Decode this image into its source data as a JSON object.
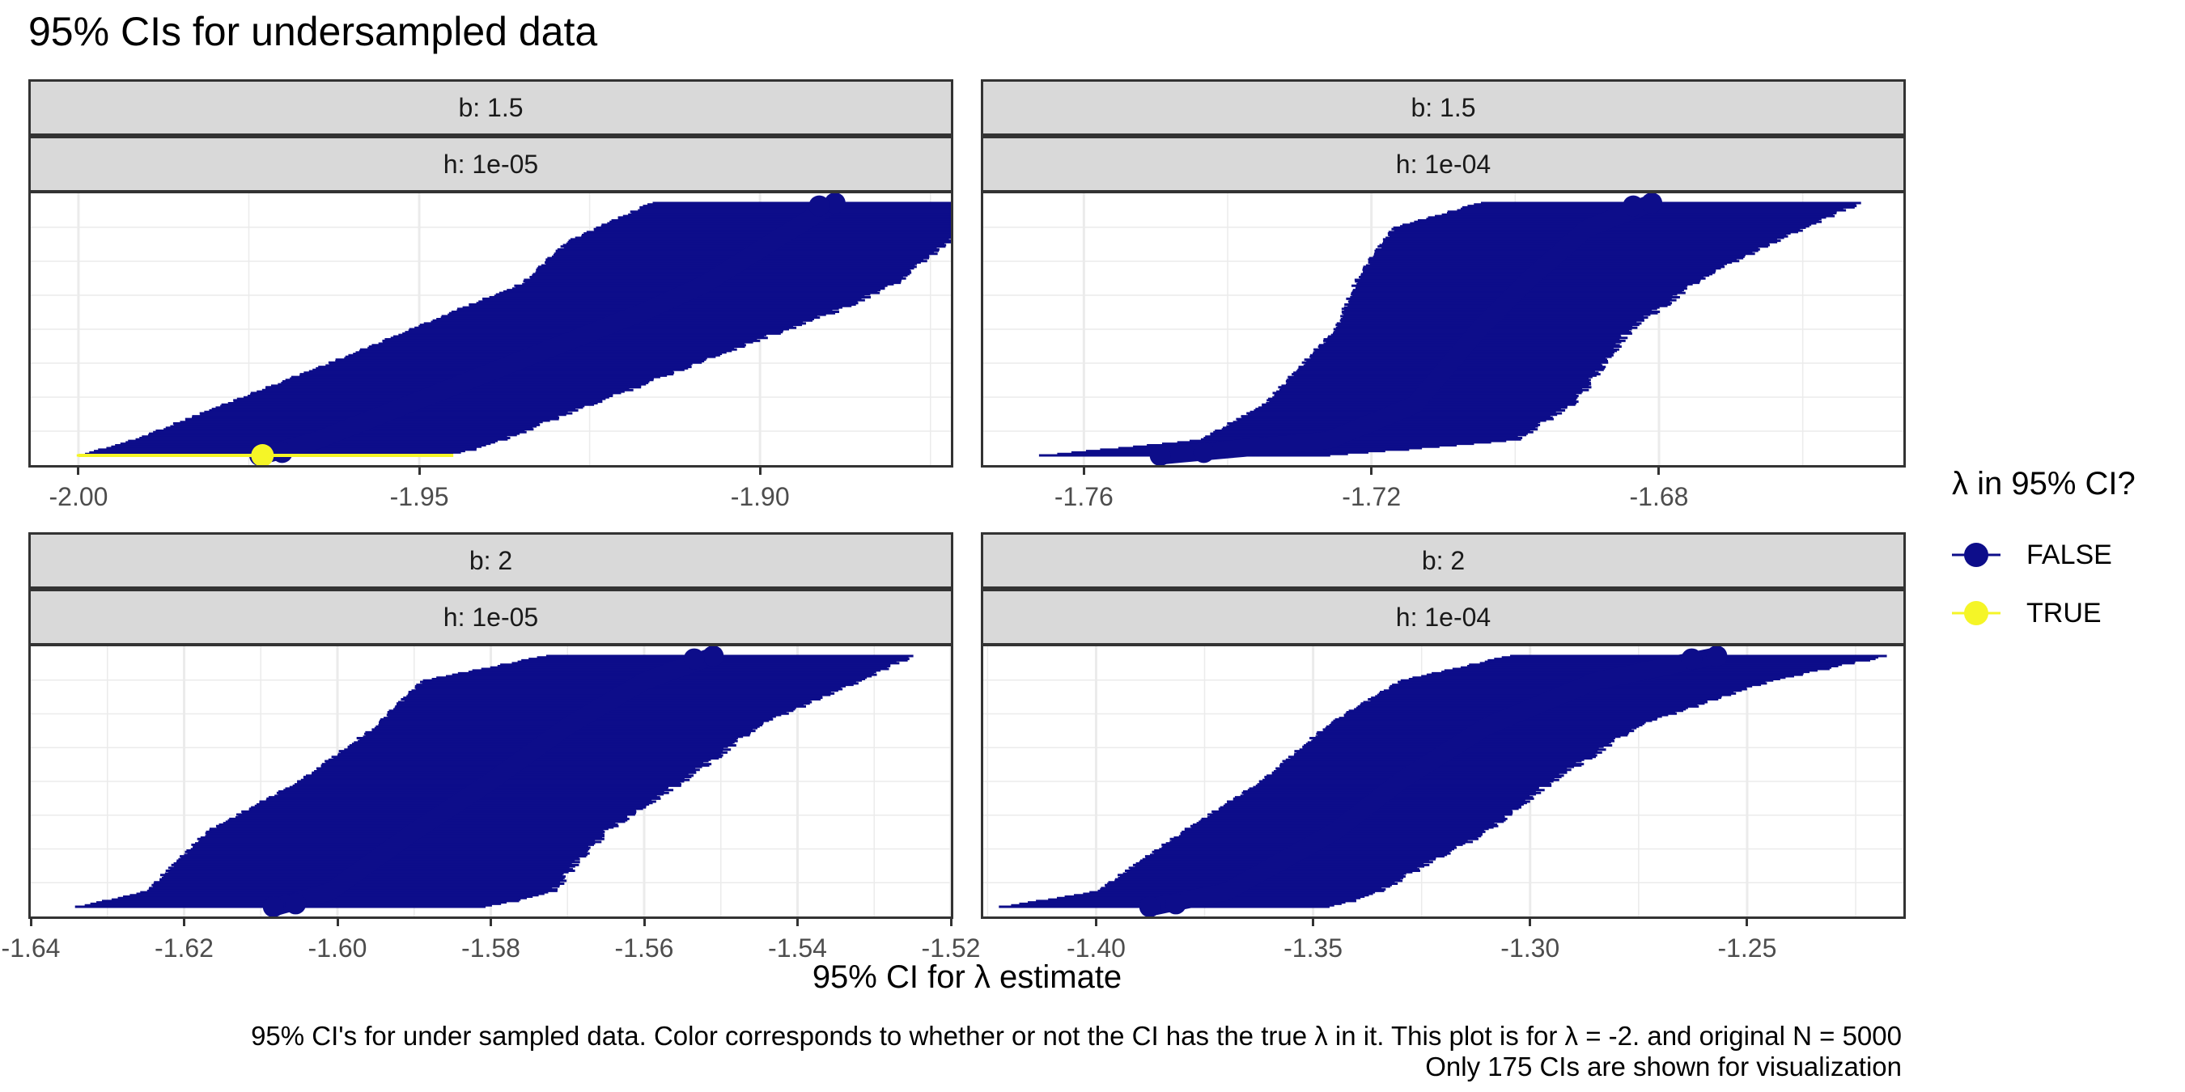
{
  "title": "95% CIs for undersampled data",
  "caption": {
    "line1": "95% CI's for under sampled data. Color corresponds to whether or not the CI has the true λ in it. This plot is for λ = -2. and original N = 5000",
    "line2": "Only 175 CIs are shown for visualization"
  },
  "colors": {
    "FALSE": "#0d0d8a",
    "TRUE": "#f5f527",
    "strip_bg": "#d9d9d9",
    "grid": "#ebebeb"
  },
  "chart_data": {
    "type": "interval",
    "xlabel": "95% CI for λ estimate",
    "legend": {
      "title": "λ in 95% CI?",
      "position": "right",
      "entries": [
        {
          "label": "FALSE",
          "color": "#0d0d8a"
        },
        {
          "label": "TRUE",
          "color": "#f5f527"
        }
      ]
    },
    "grid": true,
    "n_intervals_per_panel": 175,
    "panels": [
      {
        "strip_b": "b: 1.5",
        "strip_h": "h: 1e-05",
        "xlim": [
          -2.007,
          -1.872
        ],
        "xticks": [
          {
            "v": -2.0,
            "label": "-2.00"
          },
          {
            "v": -1.95,
            "label": "-1.95"
          },
          {
            "v": -1.9,
            "label": "-1.90"
          }
        ],
        "intervals": [
          {
            "lower": [
              -2.0,
              -1.992,
              -1.96,
              -1.945,
              -1.935,
              -1.928,
              -1.916
            ],
            "estimate": [
              -1.973,
              -1.965,
              -1.933,
              -1.917,
              -1.908,
              -1.898,
              -1.889
            ],
            "upper": [
              -1.945,
              -1.938,
              -1.906,
              -1.889,
              -1.88,
              -1.872,
              -1.866
            ],
            "at": [
              0.0,
              0.06,
              0.4,
              0.57,
              0.68,
              0.85,
              1.0
            ]
          }
        ],
        "true_intervals": [
          {
            "lower": -2.0,
            "estimate": -1.973,
            "upper": -1.945
          }
        ]
      },
      {
        "strip_b": "b: 1.5",
        "strip_h": "h: 1e-04",
        "xlim": [
          -1.774,
          -1.646
        ],
        "xticks": [
          {
            "v": -1.76,
            "label": "-1.76"
          },
          {
            "v": -1.72,
            "label": "-1.72"
          },
          {
            "v": -1.68,
            "label": "-1.68"
          }
        ],
        "intervals": [
          {
            "lower": [
              -1.766,
              -1.744,
              -1.735,
              -1.725,
              -1.722,
              -1.717,
              -1.705
            ],
            "estimate": [
              -1.749,
              -1.726,
              -1.714,
              -1.705,
              -1.698,
              -1.69,
              -1.681
            ],
            "upper": [
              -1.725,
              -1.7,
              -1.692,
              -1.684,
              -1.674,
              -1.66,
              -1.652
            ],
            "at": [
              0.0,
              0.06,
              0.2,
              0.5,
              0.7,
              0.9,
              1.0
            ]
          }
        ],
        "true_intervals": []
      },
      {
        "strip_b": "b: 2",
        "strip_h": "h: 1e-05",
        "xlim": [
          -1.64,
          -1.52
        ],
        "xticks": [
          {
            "v": -1.64,
            "label": "-1.64"
          },
          {
            "v": -1.62,
            "label": "-1.62"
          },
          {
            "v": -1.6,
            "label": "-1.60"
          },
          {
            "v": -1.58,
            "label": "-1.58"
          },
          {
            "v": -1.56,
            "label": "-1.56"
          },
          {
            "v": -1.54,
            "label": "-1.54"
          },
          {
            "v": -1.52,
            "label": "-1.52"
          }
        ],
        "intervals": [
          {
            "lower": [
              -1.634,
              -1.625,
              -1.617,
              -1.605,
              -1.595,
              -1.589,
              -1.573
            ],
            "estimate": [
              -1.608,
              -1.601,
              -1.59,
              -1.58,
              -1.57,
              -1.56,
              -1.551
            ],
            "upper": [
              -1.58,
              -1.572,
              -1.565,
              -1.555,
              -1.545,
              -1.532,
              -1.525
            ],
            "at": [
              0.0,
              0.06,
              0.3,
              0.5,
              0.72,
              0.9,
              1.0
            ]
          }
        ],
        "true_intervals": []
      },
      {
        "strip_b": "b: 2",
        "strip_h": "h: 1e-04",
        "xlim": [
          -1.426,
          -1.214
        ],
        "xticks": [
          {
            "v": -1.4,
            "label": "-1.40"
          },
          {
            "v": -1.35,
            "label": "-1.35"
          },
          {
            "v": -1.3,
            "label": "-1.30"
          },
          {
            "v": -1.25,
            "label": "-1.25"
          }
        ],
        "intervals": [
          {
            "lower": [
              -1.422,
              -1.4,
              -1.38,
              -1.362,
              -1.347,
              -1.33,
              -1.305
            ],
            "estimate": [
              -1.387,
              -1.37,
              -1.345,
              -1.33,
              -1.31,
              -1.285,
              -1.257
            ],
            "upper": [
              -1.345,
              -1.335,
              -1.31,
              -1.295,
              -1.275,
              -1.245,
              -1.218
            ],
            "at": [
              0.0,
              0.06,
              0.3,
              0.5,
              0.72,
              0.9,
              1.0
            ]
          }
        ],
        "true_intervals": []
      }
    ]
  }
}
